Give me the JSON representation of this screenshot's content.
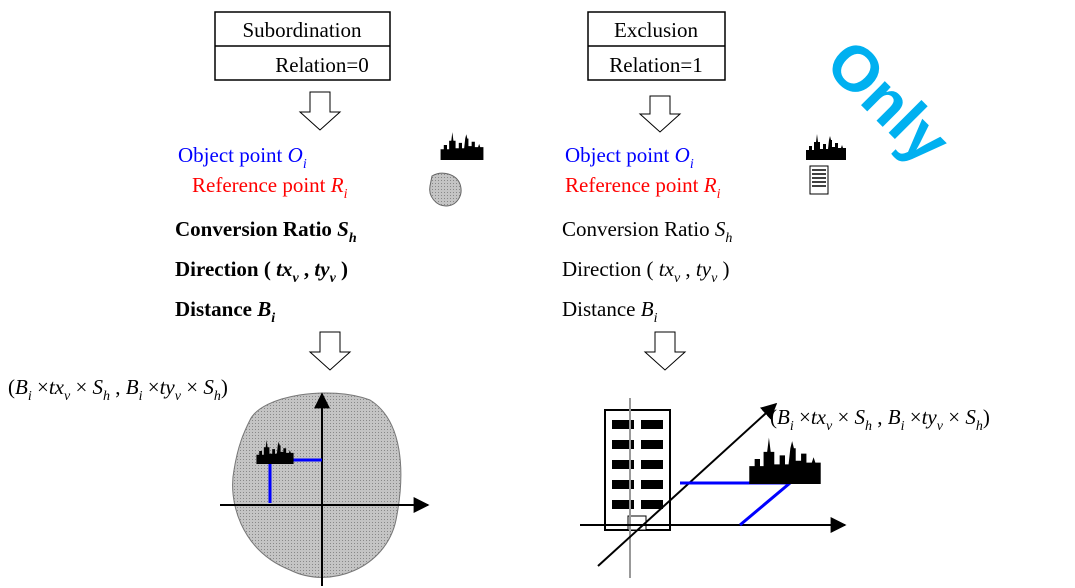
{
  "watermark": "Only",
  "subordination": {
    "box": [
      "Subordination",
      "Relation=0"
    ],
    "lines": [
      {
        "color": "#0000ff",
        "bold": false,
        "runs": [
          {
            "text": "Object point "
          },
          {
            "text": "O",
            "style": "italic"
          },
          {
            "text": "i",
            "style": "sub"
          }
        ]
      },
      {
        "color": "#ff0000",
        "bold": false,
        "runs": [
          {
            "text": "Reference point "
          },
          {
            "text": "R",
            "style": "italic"
          },
          {
            "text": "i",
            "style": "sub"
          }
        ]
      },
      {
        "color": "#000000",
        "bold": true,
        "runs": [
          {
            "text": "Conversion Ratio "
          },
          {
            "text": "S",
            "style": "italic"
          },
          {
            "text": "h",
            "style": "sub"
          }
        ]
      },
      {
        "color": "#000000",
        "bold": true,
        "runs": [
          {
            "text": "Direction ( "
          },
          {
            "text": "tx",
            "style": "italic"
          },
          {
            "text": "v",
            "style": "sub"
          },
          {
            "text": " , "
          },
          {
            "text": "ty",
            "style": "italic"
          },
          {
            "text": "v",
            "style": "sub"
          },
          {
            "text": " )"
          }
        ]
      },
      {
        "color": "#000000",
        "bold": true,
        "runs": [
          {
            "text": "Distance "
          },
          {
            "text": "B",
            "style": "italic"
          },
          {
            "text": "i",
            "style": "sub"
          }
        ]
      }
    ],
    "formula": [
      {
        "text": "("
      },
      {
        "text": "B",
        "style": "italic"
      },
      {
        "text": "i",
        "style": "sub"
      },
      {
        "text": " ×"
      },
      {
        "text": "tx",
        "style": "italic"
      },
      {
        "text": "v",
        "style": "sub"
      },
      {
        "text": " × "
      },
      {
        "text": "S",
        "style": "italic"
      },
      {
        "text": "h",
        "style": "sub"
      },
      {
        "text": " , "
      },
      {
        "text": "B",
        "style": "italic"
      },
      {
        "text": "i",
        "style": "sub"
      },
      {
        "text": " ×"
      },
      {
        "text": "ty",
        "style": "italic"
      },
      {
        "text": "v",
        "style": "sub"
      },
      {
        "text": " × "
      },
      {
        "text": "S",
        "style": "italic"
      },
      {
        "text": "h",
        "style": "sub"
      },
      {
        "text": ")"
      }
    ]
  },
  "exclusion": {
    "box": [
      "Exclusion",
      "Relation=1"
    ],
    "lines": [
      {
        "color": "#0000ff",
        "bold": false,
        "runs": [
          {
            "text": "Object point "
          },
          {
            "text": "O",
            "style": "italic"
          },
          {
            "text": "i",
            "style": "sub"
          }
        ]
      },
      {
        "color": "#ff0000",
        "bold": false,
        "runs": [
          {
            "text": "Reference point "
          },
          {
            "text": "R",
            "style": "italic"
          },
          {
            "text": "i",
            "style": "sub"
          }
        ]
      },
      {
        "color": "#000000",
        "bold": false,
        "runs": [
          {
            "text": "Conversion Ratio "
          },
          {
            "text": "S",
            "style": "italic"
          },
          {
            "text": "h",
            "style": "sub"
          }
        ]
      },
      {
        "color": "#000000",
        "bold": false,
        "runs": [
          {
            "text": "Direction ( "
          },
          {
            "text": "tx",
            "style": "italic"
          },
          {
            "text": "v",
            "style": "sub"
          },
          {
            "text": " , "
          },
          {
            "text": "ty",
            "style": "italic"
          },
          {
            "text": "v",
            "style": "sub"
          },
          {
            "text": " )"
          }
        ]
      },
      {
        "color": "#000000",
        "bold": false,
        "runs": [
          {
            "text": "Distance "
          },
          {
            "text": "B",
            "style": "italic"
          },
          {
            "text": "i",
            "style": "sub"
          }
        ]
      }
    ],
    "formula": [
      {
        "text": "("
      },
      {
        "text": "B",
        "style": "italic"
      },
      {
        "text": "i",
        "style": "sub"
      },
      {
        "text": " ×"
      },
      {
        "text": "tx",
        "style": "italic"
      },
      {
        "text": "v",
        "style": "sub"
      },
      {
        "text": " × "
      },
      {
        "text": "S",
        "style": "italic"
      },
      {
        "text": "h",
        "style": "sub"
      },
      {
        "text": " , "
      },
      {
        "text": "B",
        "style": "italic"
      },
      {
        "text": "i",
        "style": "sub"
      },
      {
        "text": " ×"
      },
      {
        "text": "ty",
        "style": "italic"
      },
      {
        "text": "v",
        "style": "sub"
      },
      {
        "text": " × "
      },
      {
        "text": "S",
        "style": "italic"
      },
      {
        "text": "h",
        "style": "sub"
      },
      {
        "text": ")"
      }
    ]
  }
}
